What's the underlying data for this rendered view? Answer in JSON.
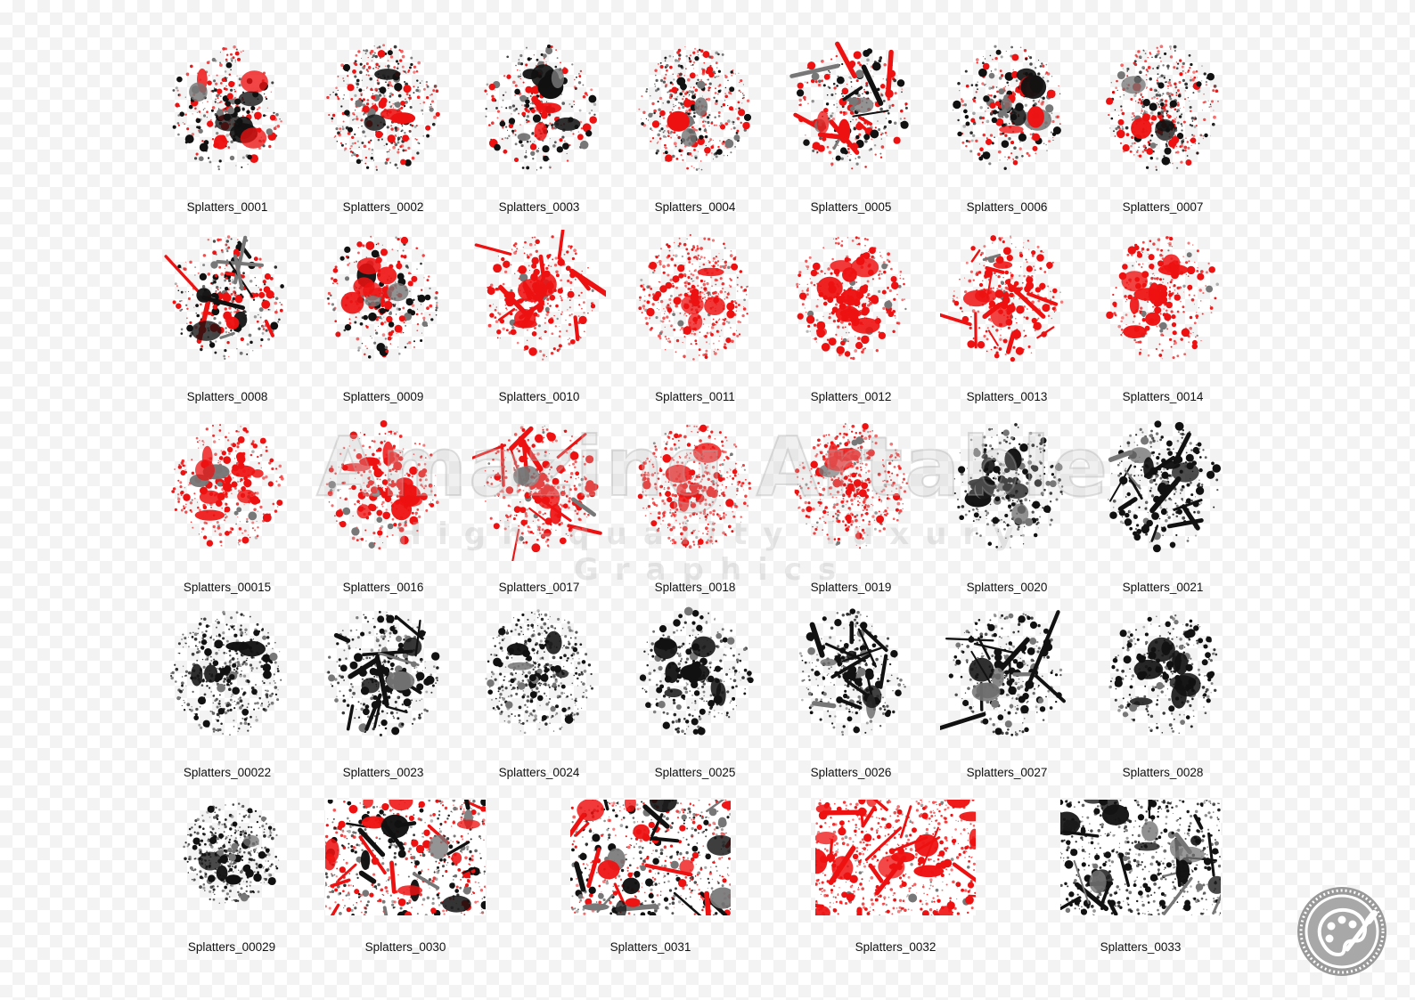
{
  "watermark": {
    "title": "Amazing Artable",
    "subtitle": "High-quality luxury Graphics"
  },
  "colors": {
    "red": "#ee1111",
    "black": "#111111",
    "grey": "#777777"
  },
  "brushes": [
    {
      "label": "Splatters_0001",
      "palette": "mixed",
      "style": "blotch"
    },
    {
      "label": "Splatters_0002",
      "palette": "mixed",
      "style": "spray"
    },
    {
      "label": "Splatters_0003",
      "palette": "mixed",
      "style": "blotch"
    },
    {
      "label": "Splatters_0004",
      "palette": "mixed",
      "style": "spray"
    },
    {
      "label": "Splatters_0005",
      "palette": "mixed",
      "style": "streak"
    },
    {
      "label": "Splatters_0006",
      "palette": "mixed",
      "style": "blotch"
    },
    {
      "label": "Splatters_0007",
      "palette": "mixed",
      "style": "spray"
    },
    {
      "label": "Splatters_0008",
      "palette": "mixed",
      "style": "streak"
    },
    {
      "label": "Splatters_0009",
      "palette": "mixed",
      "style": "blotch"
    },
    {
      "label": "Splatters_0010",
      "palette": "red",
      "style": "streak"
    },
    {
      "label": "Splatters_0011",
      "palette": "red",
      "style": "spray"
    },
    {
      "label": "Splatters_0012",
      "palette": "red",
      "style": "blotch"
    },
    {
      "label": "Splatters_0013",
      "palette": "red",
      "style": "streak"
    },
    {
      "label": "Splatters_0014",
      "palette": "red",
      "style": "blotch"
    },
    {
      "label": "Splatters_00015",
      "palette": "red",
      "style": "blotch"
    },
    {
      "label": "Splatters_0016",
      "palette": "red",
      "style": "blotch"
    },
    {
      "label": "Splatters_0017",
      "palette": "red",
      "style": "streak"
    },
    {
      "label": "Splatters_0018",
      "palette": "red",
      "style": "spray"
    },
    {
      "label": "Splatters_0019",
      "palette": "red",
      "style": "spray"
    },
    {
      "label": "Splatters_0020",
      "palette": "black",
      "style": "blotch"
    },
    {
      "label": "Splatters_0021",
      "palette": "black",
      "style": "streak"
    },
    {
      "label": "Splatters_00022",
      "palette": "black",
      "style": "spray"
    },
    {
      "label": "Splatters_0023",
      "palette": "black",
      "style": "streak"
    },
    {
      "label": "Splatters_0024",
      "palette": "black",
      "style": "spray"
    },
    {
      "label": "Splatters_0025",
      "palette": "black",
      "style": "blotch"
    },
    {
      "label": "Splatters_0026",
      "palette": "black",
      "style": "streak"
    },
    {
      "label": "Splatters_0027",
      "palette": "black",
      "style": "streak"
    },
    {
      "label": "Splatters_0028",
      "palette": "black",
      "style": "blotch"
    },
    {
      "label": "Splatters_00029",
      "palette": "black",
      "style": "spray"
    },
    {
      "label": "Splatters_0030",
      "palette": "mixed",
      "style": "texture"
    },
    {
      "label": "Splatters_0031",
      "palette": "mixed",
      "style": "texture"
    },
    {
      "label": "Splatters_0032",
      "palette": "red",
      "style": "texture"
    },
    {
      "label": "Splatters_0033",
      "palette": "black",
      "style": "texture"
    }
  ],
  "logo": {
    "icon": "palette-brush-icon"
  }
}
